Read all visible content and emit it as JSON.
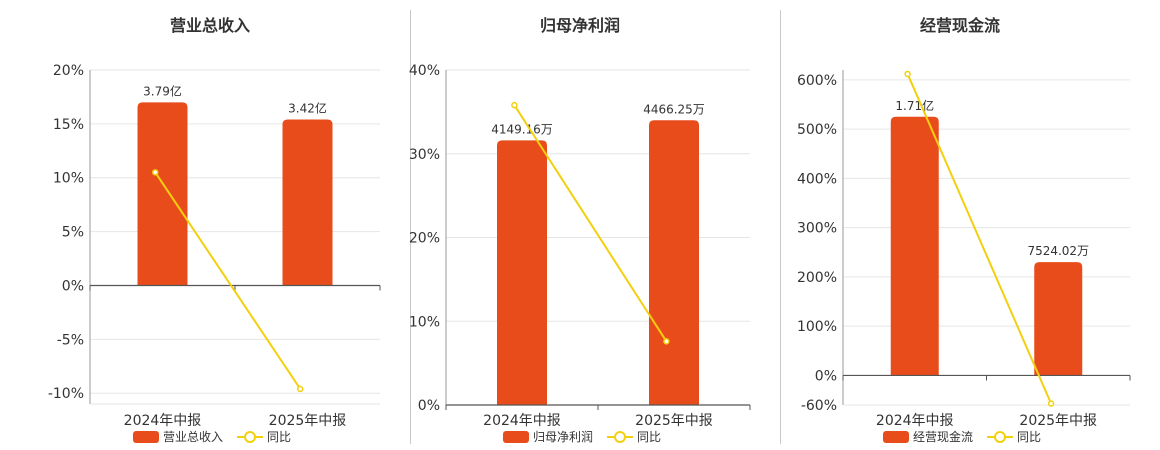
{
  "colors": {
    "bar": "#e84c1a",
    "line": "#f2d00f",
    "grid": "#e6e6e6",
    "axis": "#555555"
  },
  "chart_data": [
    {
      "type": "bar",
      "title": "营业总收入",
      "categories": [
        "2024年中报",
        "2025年中报"
      ],
      "bar_values": [
        17.0,
        15.4
      ],
      "bar_labels": [
        "3.79亿",
        "3.42亿"
      ],
      "line_values": [
        10.5,
        -9.6
      ],
      "ylim": [
        -11,
        20
      ],
      "yticks": [
        20,
        15,
        10,
        5,
        0,
        -5,
        -10
      ],
      "ytick_labels": [
        "20%",
        "15%",
        "10%",
        "5%",
        "0%",
        "-5%",
        "-10%"
      ],
      "legend": {
        "bar": "营业总收入",
        "line": "同比"
      }
    },
    {
      "type": "bar",
      "title": "归母净利润",
      "categories": [
        "2024年中报",
        "2025年中报"
      ],
      "bar_values": [
        31.6,
        34.0
      ],
      "bar_labels": [
        "4149.16万",
        "4466.25万"
      ],
      "line_values": [
        35.8,
        7.6
      ],
      "ylim": [
        0,
        40
      ],
      "yticks": [
        40,
        30,
        20,
        10,
        0
      ],
      "ytick_labels": [
        "40%",
        "30%",
        "20%",
        "10%",
        "0%"
      ],
      "legend": {
        "bar": "归母净利润",
        "line": "同比"
      }
    },
    {
      "type": "bar",
      "title": "经营现金流",
      "categories": [
        "2024年中报",
        "2025年中报"
      ],
      "bar_values": [
        525,
        230
      ],
      "bar_labels": [
        "1.71亿",
        "7524.02万"
      ],
      "line_values": [
        612,
        -57
      ],
      "ylim": [
        -60,
        620
      ],
      "yticks": [
        600,
        500,
        400,
        300,
        200,
        100,
        0,
        -60
      ],
      "ytick_labels": [
        "600%",
        "500%",
        "400%",
        "300%",
        "200%",
        "100%",
        "0%",
        "-60%"
      ],
      "legend": {
        "bar": "经营现金流",
        "line": "同比"
      }
    }
  ]
}
